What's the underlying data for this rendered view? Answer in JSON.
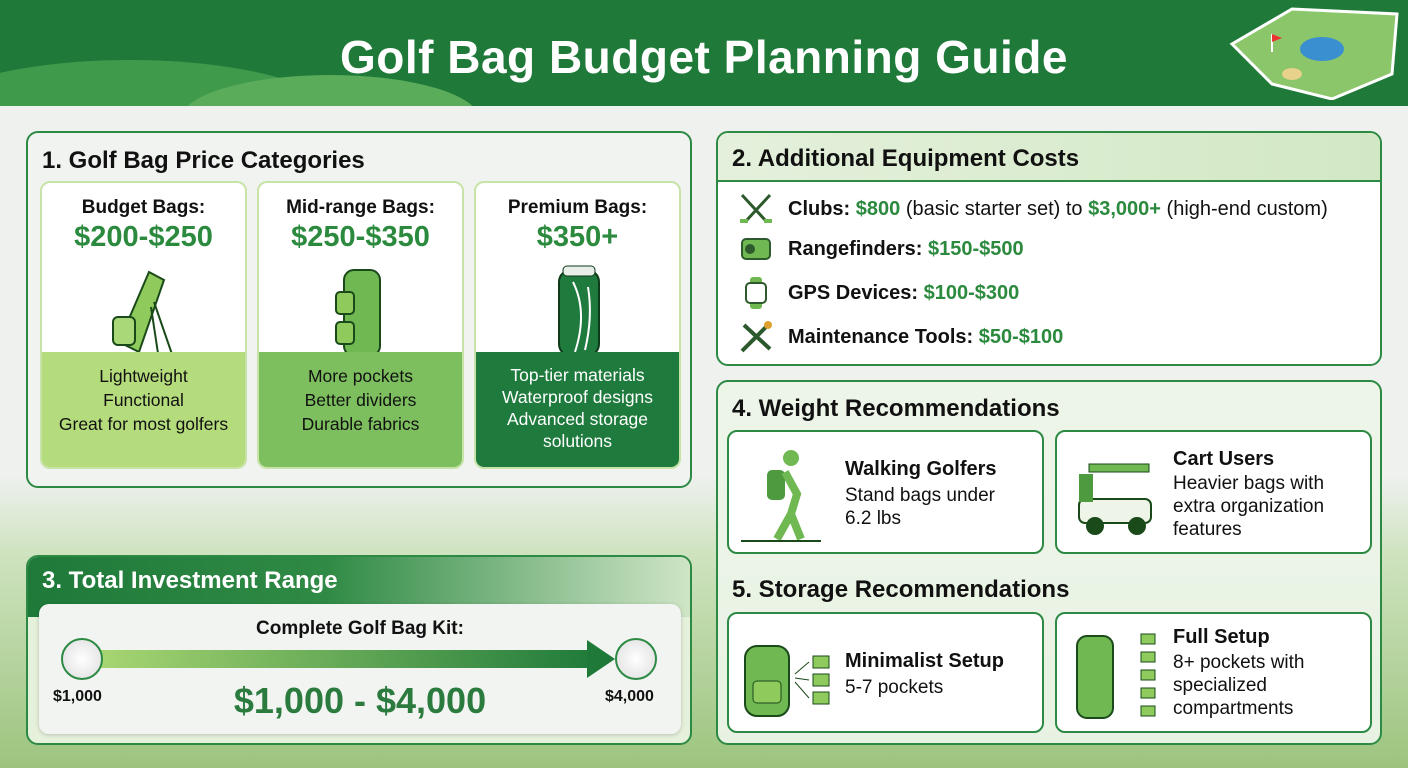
{
  "title": "Golf Bag Budget Planning Guide",
  "colors": {
    "header": "#1f7a3a",
    "accent": "#2b8a3e",
    "budget": "#b5dc7c",
    "midrange": "#7dbf5e",
    "premium": "#1f7a3d"
  },
  "price_categories": {
    "title": "1. Golf Bag Price Categories",
    "cards": [
      {
        "name": "Budget Bags:",
        "price": "$200-$250",
        "icon": "stand-bag-icon",
        "features": [
          "Lightweight",
          "Functional",
          "Great for most golfers"
        ]
      },
      {
        "name": "Mid-range Bags:",
        "price": "$250-$350",
        "icon": "cart-bag-icon",
        "features": [
          "More pockets",
          "Better dividers",
          "Durable fabrics"
        ]
      },
      {
        "name": "Premium Bags:",
        "price": "$350+",
        "icon": "premium-bag-icon",
        "features": [
          "Top-tier materials",
          "Waterproof designs",
          "Advanced storage",
          "solutions"
        ]
      }
    ]
  },
  "equipment": {
    "title": "2. Additional Equipment Costs",
    "items": [
      {
        "icon": "golf-clubs-icon",
        "label": "Clubs:",
        "p1": "$800",
        "t1": " (basic starter set) to ",
        "p2": "$3,000+",
        "t2": " (high-end custom)"
      },
      {
        "icon": "rangefinder-icon",
        "label": "Rangefinders:",
        "p1": "$150-$500"
      },
      {
        "icon": "gps-watch-icon",
        "label": "GPS Devices:",
        "p1": "$100-$300"
      },
      {
        "icon": "tools-icon",
        "label": "Maintenance Tools:",
        "p1": "$50-$100"
      }
    ]
  },
  "investment": {
    "title": "3. Total Investment Range",
    "kit_label": "Complete Golf Bag Kit:",
    "min": "$1,000",
    "max": "$4,000",
    "range": "$1,000 - $4,000"
  },
  "weight": {
    "title": "4. Weight Recommendations",
    "items": [
      {
        "title": "Walking Golfers",
        "desc": [
          "Stand bags under",
          "6.2 lbs"
        ]
      },
      {
        "title": "Cart Users",
        "desc": [
          "Heavier bags with",
          "extra organization",
          "features"
        ]
      }
    ]
  },
  "storage": {
    "title": "5. Storage Recommendations",
    "items": [
      {
        "title": "Minimalist Setup",
        "desc": [
          "5-7 pockets"
        ]
      },
      {
        "title": "Full Setup",
        "desc": [
          "8+ pockets with",
          "specialized",
          "compartments"
        ]
      }
    ]
  }
}
